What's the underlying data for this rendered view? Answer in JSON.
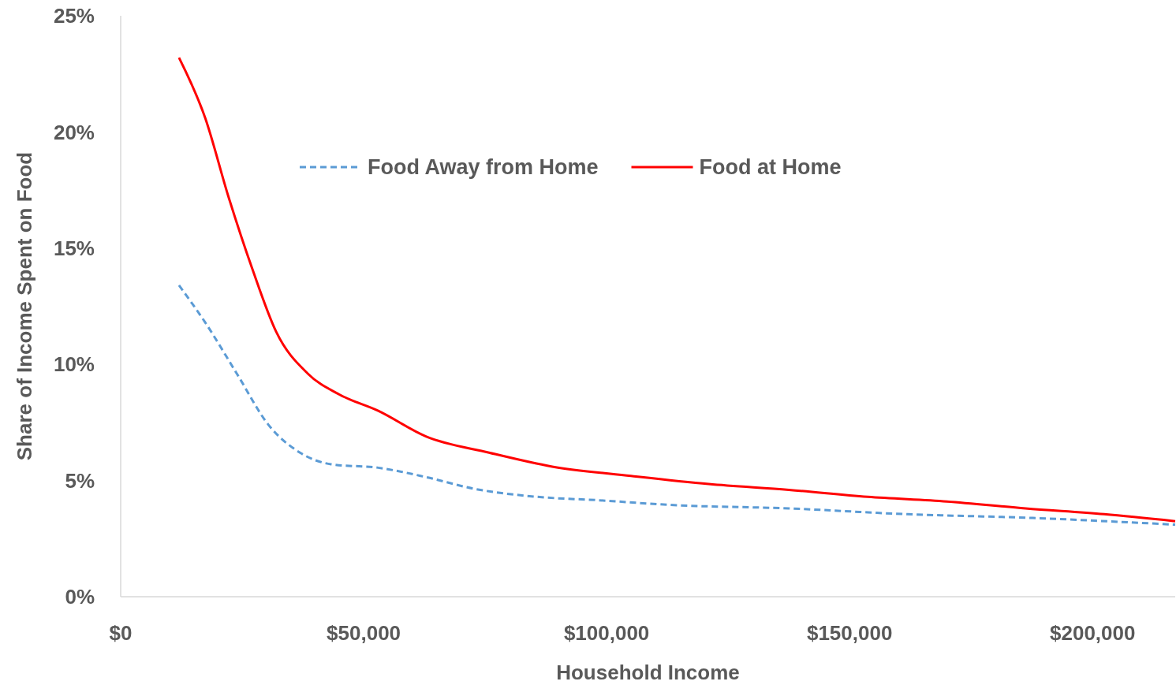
{
  "chart_data": {
    "type": "line",
    "xlabel": "Household Income",
    "ylabel": "Share of Income Spent on Food",
    "xlim": [
      0,
      217000
    ],
    "ylim": [
      0,
      25
    ],
    "xticks": [
      {
        "value": 0,
        "label": "$0"
      },
      {
        "value": 50000,
        "label": "$50,000"
      },
      {
        "value": 100000,
        "label": "$100,000"
      },
      {
        "value": 150000,
        "label": "$150,000"
      },
      {
        "value": 200000,
        "label": "$200,000"
      }
    ],
    "yticks": [
      {
        "value": 0,
        "label": "0%"
      },
      {
        "value": 5,
        "label": "5%"
      },
      {
        "value": 10,
        "label": "10%"
      },
      {
        "value": 15,
        "label": "15%"
      },
      {
        "value": 20,
        "label": "20%"
      },
      {
        "value": 25,
        "label": "25%"
      }
    ],
    "grid": false,
    "legend": "top",
    "marker": "none",
    "series": [
      {
        "name": "Food Away from Home",
        "color": "#5b9bd5",
        "line_style": "dashed",
        "x": [
          12000,
          17400,
          23900,
          30400,
          36900,
          43300,
          53000,
          62800,
          72600,
          85600,
          98500,
          113100,
          137500,
          161900,
          186200,
          217000
        ],
        "values": [
          13.4,
          11.8,
          9.6,
          7.4,
          6.2,
          5.7,
          5.55,
          5.15,
          4.65,
          4.3,
          4.15,
          3.95,
          3.8,
          3.55,
          3.4,
          3.1
        ]
      },
      {
        "name": "Food at Home",
        "color": "#ff0000",
        "line_style": "solid",
        "x": [
          12000,
          17400,
          22200,
          27100,
          32000,
          38500,
          45000,
          53000,
          62800,
          75800,
          88800,
          105000,
          121000,
          137500,
          153700,
          170000,
          186200,
          202400,
          217000
        ],
        "values": [
          23.2,
          20.6,
          17.2,
          14.1,
          11.4,
          9.6,
          8.7,
          8.0,
          6.9,
          6.2,
          5.6,
          5.2,
          4.85,
          4.6,
          4.3,
          4.1,
          3.8,
          3.55,
          3.25
        ]
      }
    ]
  }
}
